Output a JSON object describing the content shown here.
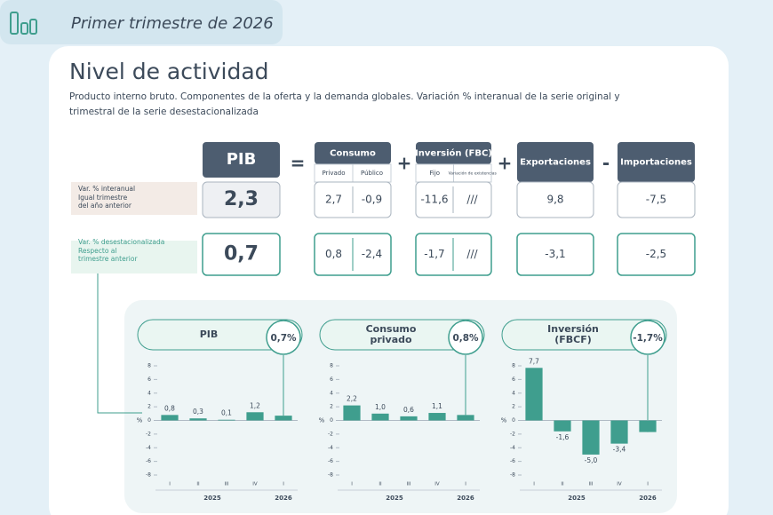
{
  "header": {
    "title": "Primer trimestre de 2026"
  },
  "section": {
    "title": "Nivel de actividad",
    "subtitle": [
      "Producto interno bruto. Componentes de la oferta y la demanda globales. Variación % interanual de la serie original  y",
      "trimestral de la serie desestacionalizada"
    ]
  },
  "table": {
    "operators": [
      "=",
      "+",
      "+",
      "-"
    ],
    "columns": [
      {
        "title": "PIB"
      },
      {
        "title": "Consumo",
        "sub": [
          "Privado",
          "Público"
        ]
      },
      {
        "title": "Inversión (FBC)",
        "sub": [
          "Fijo",
          "Variación de existencias"
        ]
      },
      {
        "title": "Exportaciones"
      },
      {
        "title": "Importaciones"
      }
    ],
    "rows": [
      {
        "label": "Var. % interanual",
        "note": [
          "Igual trimestre",
          "del año anterior"
        ],
        "cells": [
          "2,3",
          "2,7",
          "-0,9",
          "-11,6",
          "///",
          "9,8",
          "-7,5"
        ]
      },
      {
        "label": "Var. % desestacionalizada",
        "note": [
          "Respecto al",
          "trimestre anterior"
        ],
        "cells": [
          "0,7",
          "0,8",
          "-2,4",
          "-1,7",
          "///",
          "-3,1",
          "-2,5"
        ]
      }
    ]
  },
  "chart_data": [
    {
      "type": "bar",
      "title": [
        "PIB"
      ],
      "highlight": "0,7%",
      "y_label": "%",
      "categories": [
        "I",
        "II",
        "III",
        "IV",
        "I"
      ],
      "years": [
        "2025",
        "2026"
      ],
      "values": [
        0.8,
        0.3,
        0.1,
        1.2,
        0.7
      ],
      "value_labels": [
        "0,8",
        "0,3",
        "0,1",
        "1,2",
        null
      ],
      "color": "#3f9e8e",
      "ylim": [
        -8,
        8
      ],
      "yticks": [
        8,
        6,
        4,
        2,
        0,
        -2,
        -4,
        -6,
        -8
      ]
    },
    {
      "type": "bar",
      "title": [
        "Consumo",
        "privado"
      ],
      "highlight": "0,8%",
      "y_label": "%",
      "categories": [
        "I",
        "II",
        "III",
        "IV",
        "I"
      ],
      "years": [
        "2025",
        "2026"
      ],
      "values": [
        2.2,
        1.0,
        0.6,
        1.1,
        0.8
      ],
      "value_labels": [
        "2,2",
        "1,0",
        "0,6",
        "1,1",
        null
      ],
      "color": "#3f9e8e",
      "ylim": [
        -8,
        8
      ],
      "yticks": [
        8,
        6,
        4,
        2,
        0,
        -2,
        -4,
        -6,
        -8
      ]
    },
    {
      "type": "bar",
      "title": [
        "Inversión",
        "(FBCF)"
      ],
      "highlight": "-1,7%",
      "y_label": "%",
      "categories": [
        "I",
        "II",
        "III",
        "IV",
        "I"
      ],
      "years": [
        "2025",
        "2026"
      ],
      "values": [
        7.7,
        -1.6,
        -5.0,
        -3.4,
        -1.7
      ],
      "value_labels": [
        "7,7",
        "-1,6",
        "-5,0",
        "-3,4",
        null
      ],
      "color": "#3f9e8e",
      "ylim": [
        -8,
        8
      ],
      "yticks": [
        8,
        6,
        4,
        2,
        0,
        -2,
        -4,
        -6,
        -8
      ]
    }
  ]
}
